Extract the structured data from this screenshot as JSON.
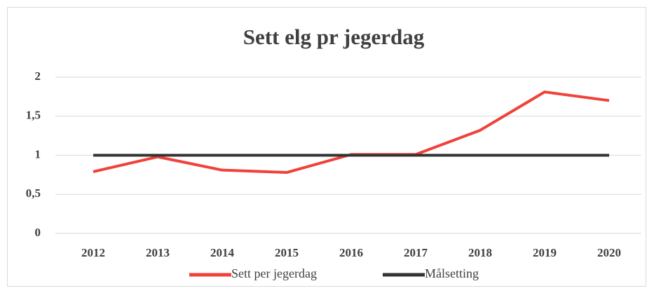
{
  "chart_data": {
    "type": "line",
    "title": "Sett elg pr jegerdag",
    "categories": [
      "2012",
      "2013",
      "2014",
      "2015",
      "2016",
      "2017",
      "2018",
      "2019",
      "2020"
    ],
    "series": [
      {
        "name": "Sett per jegerdag",
        "color": "#f0413a",
        "values": [
          0.79,
          0.98,
          0.81,
          0.78,
          1.01,
          1.01,
          1.32,
          1.81,
          1.7
        ]
      },
      {
        "name": "Målsetting",
        "color": "#333333",
        "values": [
          1,
          1,
          1,
          1,
          1,
          1,
          1,
          1,
          1
        ]
      }
    ],
    "ylim": [
      0,
      2
    ],
    "yticks": [
      0,
      {
        "value": 0.5,
        "label": "0,5"
      },
      1,
      {
        "value": 1.5,
        "label": "1,5"
      },
      2
    ],
    "grid": true,
    "legend": "bottom"
  }
}
